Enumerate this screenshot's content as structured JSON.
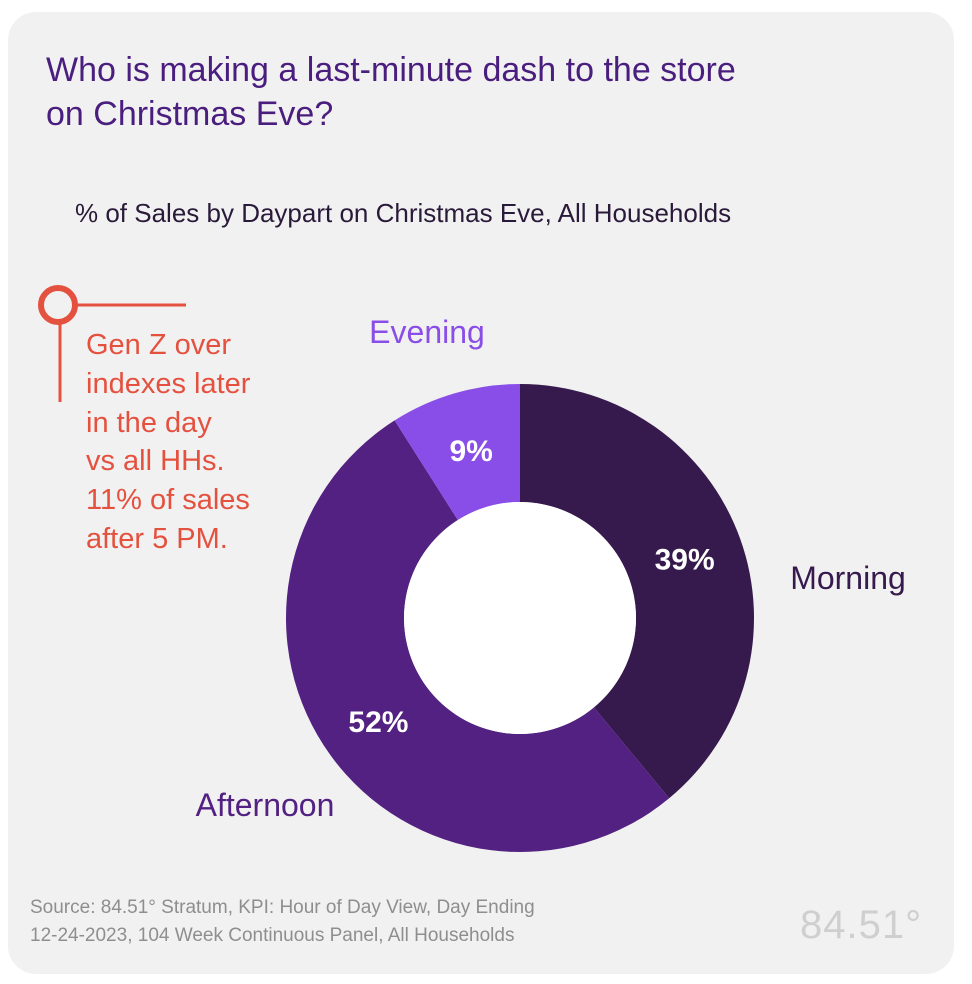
{
  "title": "Who is making a last-minute dash to the store on Christmas Eve?",
  "colors": {
    "card_bg": "#f2f1f1",
    "title": "#4a1e7e",
    "callout": "#e4513f",
    "source": "#8e8e8e",
    "logo": "#cfcfcf"
  },
  "chart_data": {
    "type": "pie",
    "variant": "donut",
    "title": "% of  Sales by Daypart on Christmas Eve, All Households",
    "series": [
      {
        "name": "Morning",
        "value": 39,
        "data_label": "39%",
        "color": "#361a4d",
        "label_color": "#361a4d"
      },
      {
        "name": "Afternoon",
        "value": 52,
        "data_label": "52%",
        "color": "#522181",
        "label_color": "#522181"
      },
      {
        "name": "Evening",
        "value": 9,
        "data_label": "9%",
        "color": "#8a4ee8",
        "label_color": "#8a4ee8"
      }
    ]
  },
  "callout": {
    "lines": [
      "Gen Z over",
      "indexes later",
      "in the day",
      "vs all HHs.",
      "11% of sales",
      "after 5 PM."
    ]
  },
  "source": {
    "lines": [
      "Source: 84.51° Stratum, KPI: Hour of Day View, Day Ending",
      "12-24-2023, 104 Week Continuous Panel, All Households"
    ]
  },
  "logo": {
    "text": "84.51°"
  }
}
